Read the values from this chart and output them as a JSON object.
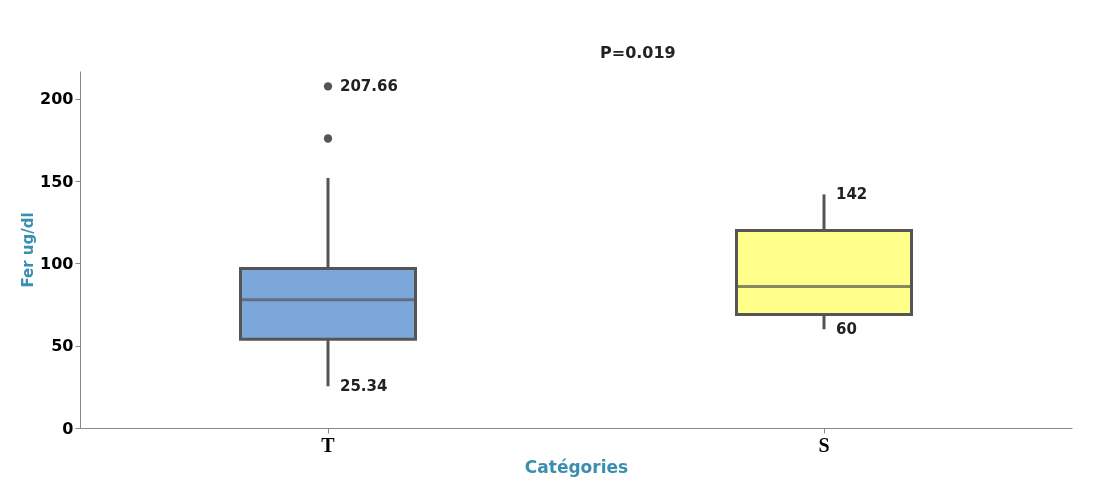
{
  "chart_data": {
    "type": "box",
    "xlabel": "Catégories",
    "ylabel": "Fer ug/dl",
    "categories": [
      "T",
      "S"
    ],
    "colors": [
      "#7ba7db",
      "#ffff8a"
    ],
    "boxes": [
      {
        "low": 25.34,
        "q1": 54,
        "median": 78,
        "q3": 97,
        "high": 152,
        "outliers": [
          207.66,
          176
        ]
      },
      {
        "low": 60,
        "q1": 69,
        "median": 86,
        "q3": 120,
        "high": 142
      }
    ],
    "ylim": [
      0,
      217
    ],
    "yticks": [
      0,
      50,
      100,
      150,
      200
    ],
    "annotations": [
      "207.66",
      {
        "text": "25.34",
        "x": "T",
        "y": 25.34
      },
      {
        "text": "142",
        "x": "S",
        "y": 142
      },
      {
        "text": "60",
        "x": "S",
        "y": 60
      },
      "P=0.019"
    ],
    "grid": false
  }
}
